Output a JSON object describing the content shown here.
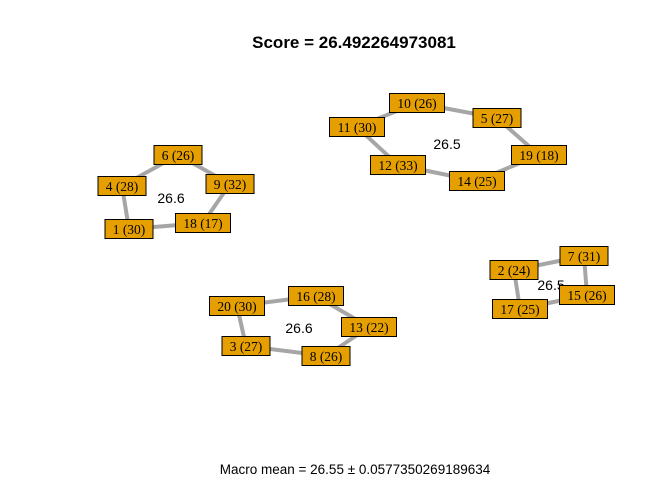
{
  "title": "Score =  26.492264973081",
  "footer": "Macro mean = 26.55 ± 0.0577350269189634",
  "colors": {
    "node_fill": "#E69F00",
    "edge": "#A6A6A6"
  },
  "groups": [
    {
      "score_label": "26.6",
      "nodes": [
        {
          "id": "6",
          "label": "6 (26)"
        },
        {
          "id": "4",
          "label": "4 (28)"
        },
        {
          "id": "9",
          "label": "9 (32)"
        },
        {
          "id": "1",
          "label": "1 (30)"
        },
        {
          "id": "18",
          "label": "18 (17)"
        }
      ],
      "edges": [
        [
          "6",
          "4"
        ],
        [
          "6",
          "9"
        ],
        [
          "4",
          "1"
        ],
        [
          "1",
          "18"
        ],
        [
          "18",
          "9"
        ]
      ]
    },
    {
      "score_label": "26.5",
      "nodes": [
        {
          "id": "10",
          "label": "10 (26)"
        },
        {
          "id": "11",
          "label": "11 (30)"
        },
        {
          "id": "5",
          "label": "5 (27)"
        },
        {
          "id": "19",
          "label": "19 (18)"
        },
        {
          "id": "12",
          "label": "12 (33)"
        },
        {
          "id": "14",
          "label": "14 (25)"
        }
      ],
      "edges": [
        [
          "10",
          "11"
        ],
        [
          "10",
          "5"
        ],
        [
          "5",
          "19"
        ],
        [
          "11",
          "12"
        ],
        [
          "12",
          "14"
        ],
        [
          "14",
          "19"
        ]
      ]
    },
    {
      "score_label": "26.6",
      "nodes": [
        {
          "id": "20",
          "label": "20 (30)"
        },
        {
          "id": "16",
          "label": "16 (28)"
        },
        {
          "id": "13",
          "label": "13 (22)"
        },
        {
          "id": "3",
          "label": "3 (27)"
        },
        {
          "id": "8",
          "label": "8 (26)"
        }
      ],
      "edges": [
        [
          "20",
          "16"
        ],
        [
          "16",
          "13"
        ],
        [
          "20",
          "3"
        ],
        [
          "3",
          "8"
        ],
        [
          "8",
          "13"
        ]
      ]
    },
    {
      "score_label": "26.5",
      "nodes": [
        {
          "id": "2",
          "label": "2 (24)"
        },
        {
          "id": "7",
          "label": "7 (31)"
        },
        {
          "id": "15",
          "label": "15 (26)"
        },
        {
          "id": "17",
          "label": "17 (25)"
        }
      ],
      "edges": [
        [
          "2",
          "7"
        ],
        [
          "7",
          "15"
        ],
        [
          "15",
          "17"
        ],
        [
          "17",
          "2"
        ]
      ]
    }
  ]
}
